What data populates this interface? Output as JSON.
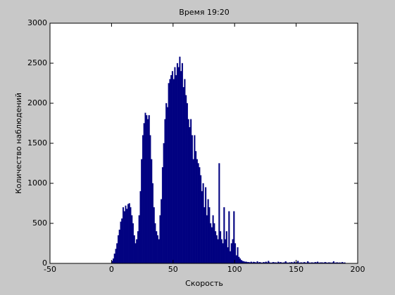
{
  "chart_data": {
    "type": "histogram",
    "title": "Время 19:20",
    "x_label": "Скорость",
    "y_label": "Количество наблюдений",
    "color": "#000080",
    "bins": [
      0,
      1,
      2,
      3,
      4,
      5,
      6,
      7,
      8,
      9,
      10,
      11,
      12,
      13,
      14,
      15,
      16,
      17,
      18,
      19,
      20,
      21,
      22,
      23,
      24,
      25,
      26,
      27,
      28,
      29,
      30,
      31,
      32,
      33,
      34,
      35,
      36,
      37,
      38,
      39,
      40,
      41,
      42,
      43,
      44,
      45,
      46,
      47,
      48,
      49,
      50,
      51,
      52,
      53,
      54,
      55,
      56,
      57,
      58,
      59,
      60,
      61,
      62,
      63,
      64,
      65,
      66,
      67,
      68,
      69,
      70,
      71,
      72,
      73,
      74,
      75,
      76,
      77,
      78,
      79,
      80,
      81,
      82,
      83,
      84,
      85,
      86,
      87,
      88,
      89,
      90,
      91,
      92,
      93,
      94,
      95,
      96,
      97,
      98,
      99,
      100,
      101,
      102,
      103,
      104,
      105,
      106,
      107,
      108,
      109,
      110,
      111,
      112,
      113,
      114,
      115,
      116,
      117,
      118,
      119,
      120,
      121,
      122,
      123,
      124,
      125,
      126,
      127,
      128,
      129,
      130,
      131,
      132,
      133,
      134,
      135,
      136,
      137,
      138,
      139,
      140,
      141,
      142,
      143,
      144,
      145,
      146,
      147,
      148,
      149,
      150,
      151,
      152,
      153,
      154,
      155,
      156,
      157,
      158,
      159,
      160,
      161,
      162,
      163,
      164,
      165,
      166,
      167,
      168,
      169,
      170,
      171,
      172,
      173,
      174,
      175,
      176,
      177,
      178,
      179,
      180,
      181,
      182,
      183,
      184,
      185,
      186,
      187,
      188,
      189,
      190
    ],
    "counts": [
      30,
      60,
      120,
      180,
      250,
      350,
      420,
      520,
      560,
      700,
      650,
      720,
      680,
      740,
      750,
      700,
      600,
      500,
      350,
      250,
      300,
      400,
      600,
      900,
      1300,
      1600,
      1750,
      1880,
      1850,
      1800,
      1850,
      1600,
      1300,
      1000,
      700,
      500,
      400,
      350,
      300,
      600,
      800,
      1200,
      1500,
      1800,
      2000,
      1950,
      2250,
      2300,
      2350,
      2400,
      2300,
      2450,
      2350,
      2500,
      2450,
      2580,
      2400,
      2500,
      2200,
      2300,
      2100,
      2000,
      1800,
      1700,
      1800,
      1600,
      1300,
      1600,
      1400,
      1300,
      1250,
      1200,
      1100,
      900,
      1000,
      700,
      950,
      600,
      800,
      700,
      500,
      450,
      600,
      500,
      400,
      350,
      300,
      1250,
      400,
      300,
      250,
      700,
      300,
      400,
      200,
      650,
      150,
      250,
      300,
      650,
      250,
      100,
      200,
      80,
      60,
      40,
      30,
      25,
      20,
      20,
      15,
      15,
      12,
      20,
      10,
      18,
      14,
      10,
      25,
      12,
      15,
      10,
      8,
      15,
      12,
      20,
      10,
      30,
      12,
      8,
      10,
      15,
      10,
      12,
      8,
      20,
      10,
      15,
      8,
      10,
      12,
      25,
      10,
      8,
      12,
      10,
      15,
      8,
      20,
      10,
      12,
      30,
      8,
      10,
      12,
      8,
      15,
      10,
      8,
      25,
      10,
      8,
      12,
      10,
      8,
      15,
      10,
      20,
      8,
      10,
      12,
      10,
      8,
      15,
      10,
      8,
      12,
      10,
      8,
      10,
      25,
      8,
      10,
      12,
      8,
      10,
      8,
      15,
      8,
      10
    ],
    "xlim": [
      -50,
      200
    ],
    "xticks": [
      -50,
      0,
      50,
      100,
      150,
      200
    ],
    "ylim": [
      0,
      3000
    ],
    "yticks": [
      0,
      500,
      1000,
      1500,
      2000,
      2500,
      3000
    ]
  }
}
